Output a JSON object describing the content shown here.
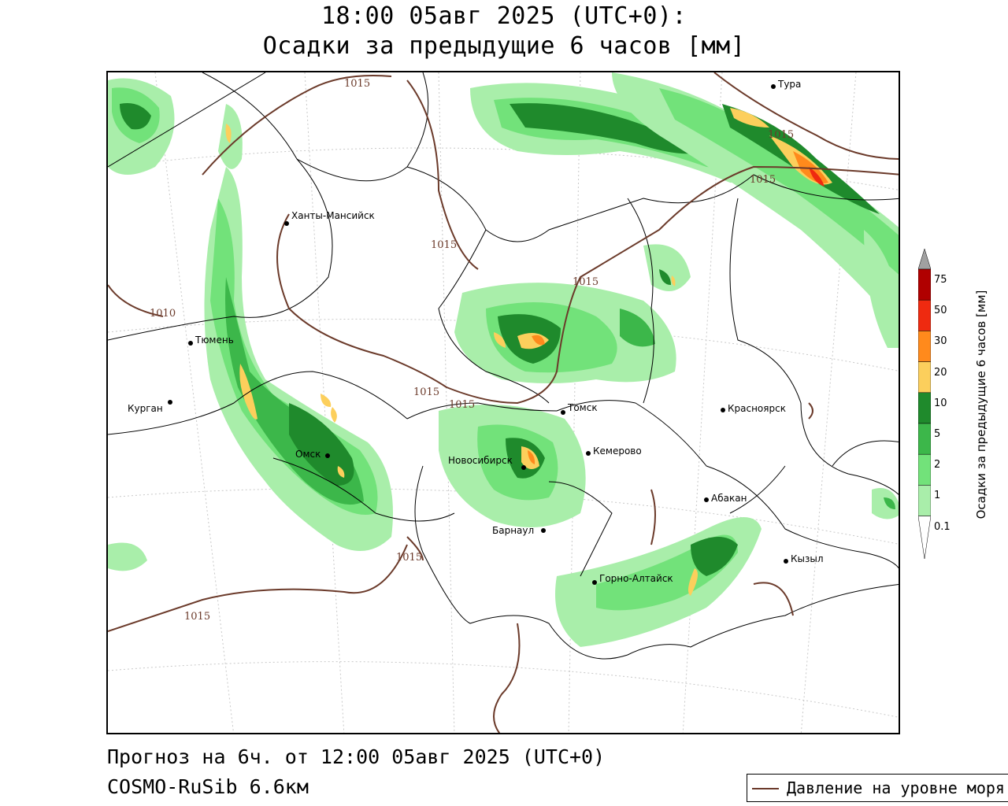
{
  "title": {
    "line1": "18:00 05авг 2025 (UTC+0):",
    "line2": "Осадки за предыдущие 6 часов [мм]"
  },
  "footer": {
    "forecast": "Прогноз на 6ч. от 12:00 05авг 2025 (UTC+0)",
    "model": "COSMO-RuSib 6.6км"
  },
  "legend": {
    "isobar_label": "Давление на уровне моря"
  },
  "colorbar": {
    "title": "Осадки за предыдущие 6 часов [мм]",
    "levels": [
      "0.1",
      "1",
      "2",
      "5",
      "10",
      "20",
      "30",
      "50",
      "75"
    ],
    "colors": [
      "#a9eeaa",
      "#72e27a",
      "#3cb74a",
      "#1f8a2c",
      "#fccf5c",
      "#ff8a1c",
      "#ef2a10",
      "#b00000",
      "#a0a0a0"
    ]
  },
  "cities": [
    {
      "name": "Тура"
    },
    {
      "name": "Ханты-Мансийск"
    },
    {
      "name": "Тюмень"
    },
    {
      "name": "Курган"
    },
    {
      "name": "Омск"
    },
    {
      "name": "Томск"
    },
    {
      "name": "Красноярск"
    },
    {
      "name": "Новосибирск"
    },
    {
      "name": "Кемерово"
    },
    {
      "name": "Абакан"
    },
    {
      "name": "Барнаул"
    },
    {
      "name": "Кызыл"
    },
    {
      "name": "Горно-Алтайск"
    }
  ],
  "isobars": {
    "labels": [
      "1015",
      "1015",
      "1015",
      "1015",
      "1015",
      "1015",
      "1015",
      "1015",
      "1010",
      "1015"
    ]
  }
}
